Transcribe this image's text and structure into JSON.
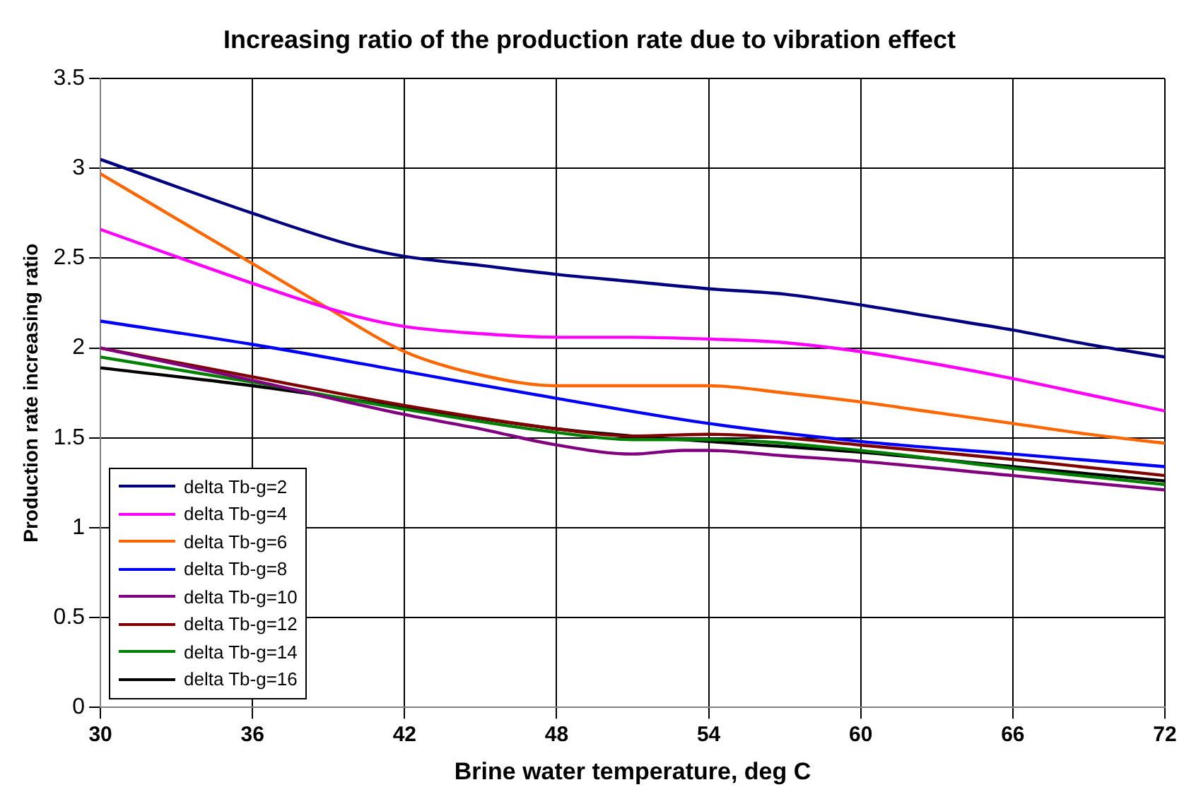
{
  "chart_data": {
    "type": "line",
    "title": "Increasing ratio of the production rate due to vibration effect",
    "xlabel": "Brine water temperature, deg C",
    "ylabel": "Production rate increasing ratio",
    "xlim": [
      30,
      72
    ],
    "xticks": [
      30,
      36,
      42,
      48,
      54,
      60,
      66,
      72
    ],
    "ylim": [
      0,
      3.5
    ],
    "yticks": [
      0,
      0.5,
      1,
      1.5,
      2,
      2.5,
      3,
      3.5
    ],
    "grid": true,
    "legend": "bottom left",
    "marker": "none",
    "line_style": "solid",
    "series": [
      {
        "name": "delta Tb-g=2",
        "color": "#000080",
        "x": [
          30,
          36,
          40,
          42,
          45,
          48,
          51,
          54,
          57,
          60,
          63,
          66,
          69,
          72
        ],
        "values": [
          3.05,
          2.75,
          2.57,
          2.51,
          2.46,
          2.41,
          2.37,
          2.33,
          2.3,
          2.24,
          2.17,
          2.1,
          2.02,
          1.95
        ]
      },
      {
        "name": "delta Tb-g=4",
        "color": "#ff00ff",
        "x": [
          30,
          36,
          40,
          42,
          45,
          48,
          51,
          54,
          57,
          60,
          63,
          66,
          69,
          72
        ],
        "values": [
          2.66,
          2.36,
          2.18,
          2.12,
          2.08,
          2.06,
          2.06,
          2.05,
          2.03,
          1.98,
          1.91,
          1.83,
          1.74,
          1.65
        ]
      },
      {
        "name": "delta Tb-g=6",
        "color": "#ff6600",
        "x": [
          30,
          33,
          36,
          39,
          42,
          45,
          48,
          51,
          54,
          57,
          60,
          63,
          66,
          69,
          72
        ],
        "values": [
          2.97,
          2.72,
          2.47,
          2.22,
          1.98,
          1.85,
          1.79,
          1.79,
          1.79,
          1.75,
          1.7,
          1.64,
          1.58,
          1.52,
          1.47
        ]
      },
      {
        "name": "delta Tb-g=8",
        "color": "#0000ff",
        "x": [
          30,
          36,
          42,
          48,
          54,
          60,
          66,
          72
        ],
        "values": [
          2.15,
          2.02,
          1.87,
          1.72,
          1.58,
          1.48,
          1.41,
          1.34
        ]
      },
      {
        "name": "delta Tb-g=10",
        "color": "#800080",
        "x": [
          30,
          36,
          42,
          45,
          48,
          51,
          53,
          54,
          57,
          60,
          66,
          72
        ],
        "values": [
          2,
          1.82,
          1.63,
          1.55,
          1.46,
          1.41,
          1.43,
          1.43,
          1.4,
          1.37,
          1.29,
          1.21
        ]
      },
      {
        "name": "delta Tb-g=12",
        "color": "#800000",
        "x": [
          30,
          36,
          42,
          48,
          51,
          54,
          57,
          60,
          66,
          72
        ],
        "values": [
          2,
          1.84,
          1.68,
          1.55,
          1.51,
          1.52,
          1.5,
          1.46,
          1.38,
          1.29
        ]
      },
      {
        "name": "delta Tb-g=14",
        "color": "#008000",
        "x": [
          30,
          36,
          42,
          48,
          51,
          54,
          60,
          66,
          72
        ],
        "values": [
          1.95,
          1.81,
          1.66,
          1.53,
          1.49,
          1.49,
          1.43,
          1.33,
          1.24
        ]
      },
      {
        "name": "delta Tb-g=16",
        "color": "#000000",
        "x": [
          30,
          36,
          42,
          48,
          51,
          54,
          60,
          66,
          72
        ],
        "values": [
          1.89,
          1.79,
          1.67,
          1.55,
          1.51,
          1.48,
          1.42,
          1.34,
          1.26
        ]
      }
    ]
  }
}
